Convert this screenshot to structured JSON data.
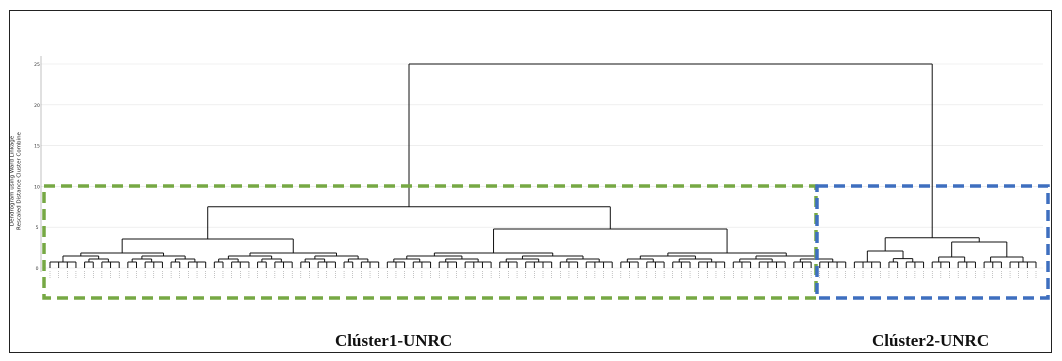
{
  "figure": {
    "y_axis_title": "Dendrogram using Ward Linkage",
    "y_axis_subtitle": "Rescaled Distance Cluster Combine",
    "y_ticks": [
      "0",
      "5",
      "10",
      "15",
      "20",
      "25"
    ]
  },
  "clusters": [
    {
      "label": "Clúster1-UNRC",
      "box_color": "#76a844"
    },
    {
      "label": "Clúster2-UNRC",
      "box_color": "#3e6fbf"
    }
  ],
  "chart_data": {
    "type": "dendrogram",
    "linkage": "Ward",
    "scale": [
      0,
      25
    ],
    "grid": true,
    "leaf_count": 115,
    "merges": [
      {
        "name": "root",
        "height": 25,
        "children": [
          "Clúster1-UNRC",
          "Clúster2-UNRC"
        ]
      },
      {
        "name": "Clúster1-UNRC",
        "height": 7.5
      },
      {
        "name": "Clúster2-UNRC",
        "height": 3.7
      }
    ]
  }
}
